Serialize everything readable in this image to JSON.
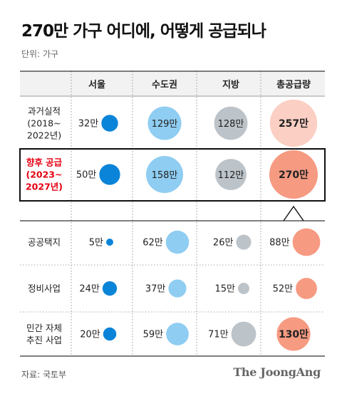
{
  "title": "270만 가구 어디에, 어떻게 공급되나",
  "unit": "단위: 가구",
  "source": "자료: 국토부",
  "brand": "The JoongAng",
  "colors": {
    "seoul": "#0a84d8",
    "capital": "#8fcdf2",
    "region": "#bcc3c9",
    "total_light": "#fbcfc3",
    "total_strong": "#f69a82",
    "highlight_text": "#e60012",
    "header_bg": "#f2f2f2"
  },
  "chart_data": {
    "type": "bubble-table",
    "columns": [
      "서울",
      "수도권",
      "지방",
      "총공급량"
    ],
    "rows": [
      {
        "label": "과거실적\n(2018~\n2022년)",
        "highlight": false,
        "values": [
          32,
          129,
          128,
          257
        ],
        "labels": [
          "32만",
          "129만",
          "128만",
          "257만"
        ]
      },
      {
        "label": "향후 공급\n(2023~\n2027년)",
        "highlight": true,
        "values": [
          50,
          158,
          112,
          270
        ],
        "labels": [
          "50만",
          "158만",
          "112만",
          "270만"
        ]
      },
      {
        "label": "공공택지",
        "highlight": false,
        "values": [
          5,
          62,
          26,
          88
        ],
        "labels": [
          "5만",
          "62만",
          "26만",
          "88만"
        ]
      },
      {
        "label": "정비사업",
        "highlight": false,
        "values": [
          24,
          37,
          15,
          52
        ],
        "labels": [
          "24만",
          "37만",
          "15만",
          "52만"
        ]
      },
      {
        "label": "민간 자체\n추진 사업",
        "highlight": false,
        "values": [
          20,
          59,
          71,
          130
        ],
        "labels": [
          "20만",
          "59만",
          "71만",
          "130만"
        ]
      }
    ]
  }
}
